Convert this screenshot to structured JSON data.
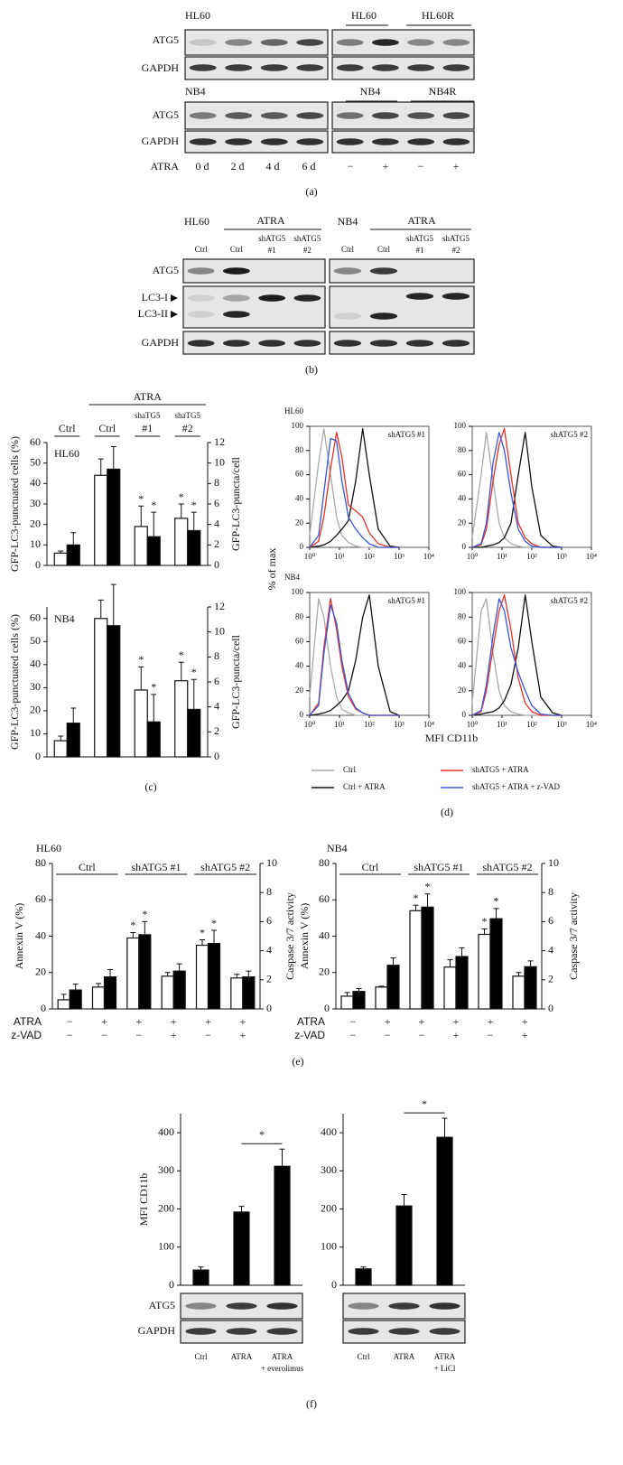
{
  "blots": {
    "a": {
      "lines": [
        "HL60",
        "NB4"
      ],
      "rows": [
        "ATG5",
        "GAPDH"
      ],
      "groups": [
        "HL60",
        "HL60R",
        "NB4",
        "NB4R"
      ],
      "treatment": "ATRA",
      "days": [
        "0 d",
        "2 d",
        "4 d",
        "6 d"
      ],
      "signs": [
        "−",
        "+",
        "−",
        "+"
      ],
      "caption": "(a)"
    },
    "b": {
      "lines": [
        "HL60",
        "NB4"
      ],
      "treatment": "ATRA",
      "lanes": [
        [
          "Ctrl"
        ],
        [
          "Ctrl"
        ],
        [
          "shATG5",
          "#1"
        ],
        [
          "shATG5",
          "#2"
        ]
      ],
      "rows": [
        "ATG5",
        "LC3-I",
        "LC3-II",
        "GAPDH"
      ],
      "caption": "(b)"
    },
    "f": {
      "rows": [
        "ATG5",
        "GAPDH"
      ],
      "caption": "(f)"
    }
  },
  "chart_data": [
    {
      "type": "bar",
      "title": "HL60",
      "ylabel": "GFP-LC3-punctuated cells (%)",
      "y2label": "GFP-LC3-puncta/cell",
      "header": {
        "treatment": "ATRA",
        "prefixes": [
          null,
          null,
          "shaTG5",
          "shaTG5"
        ]
      },
      "categories": [
        "Ctrl",
        "Ctrl",
        "#1",
        "#2"
      ],
      "ylim": [
        0,
        60
      ],
      "yticks": [
        0,
        10,
        20,
        30,
        40,
        50,
        60
      ],
      "y2lim": [
        0,
        12
      ],
      "y2ticks": [
        0,
        2,
        4,
        6,
        8,
        10,
        12
      ],
      "series": [
        {
          "color": "#ffffff",
          "values": [
            6,
            44,
            19,
            23
          ],
          "errors": [
            1,
            8,
            10,
            7
          ],
          "annotations": [
            null,
            null,
            "*",
            "*"
          ]
        },
        {
          "color": "#000000",
          "axis": "y2",
          "values": [
            2.0,
            9.4,
            2.8,
            3.4
          ],
          "errors": [
            1.2,
            2.2,
            2.4,
            1.8
          ],
          "annotations": [
            null,
            null,
            "*",
            "*"
          ]
        }
      ]
    },
    {
      "type": "bar",
      "title": "NB4",
      "ylabel": "GFP-LC3-punctuated cells (%)",
      "y2label": "GFP-LC3-puncta/cell",
      "caption": "(c)",
      "ylim": [
        0,
        65
      ],
      "yticks": [
        0,
        10,
        20,
        30,
        40,
        50,
        60
      ],
      "y2lim": [
        0,
        12
      ],
      "y2ticks": [
        0,
        2,
        4,
        6,
        8,
        10,
        12
      ],
      "series": [
        {
          "color": "#ffffff",
          "values": [
            7,
            60,
            29,
            33
          ],
          "errors": [
            2,
            8,
            10,
            8
          ],
          "annotations": [
            null,
            null,
            "*",
            "*"
          ]
        },
        {
          "color": "#000000",
          "axis": "y2",
          "values": [
            2.7,
            10.5,
            2.8,
            3.8
          ],
          "errors": [
            1.2,
            3.3,
            2.2,
            2.4
          ],
          "annotations": [
            null,
            null,
            "*",
            "*"
          ]
        }
      ]
    },
    {
      "type": "line",
      "title": "HL60",
      "ylabel": "% of max",
      "annotation": "shATG5 #1",
      "xscale": "log",
      "legend": "bottom",
      "x": [
        1,
        2,
        3,
        5,
        8,
        12,
        20,
        35,
        60,
        100,
        200,
        500,
        1000
      ],
      "xlim": [
        1,
        10000
      ],
      "xticks": [
        {
          "value": 1,
          "label": "10⁰"
        },
        {
          "value": 10,
          "label": "10¹"
        },
        {
          "value": 100,
          "label": "10²"
        },
        {
          "value": 1000,
          "label": "10³"
        },
        {
          "value": 10000,
          "label": "10⁴"
        }
      ],
      "ylim": [
        0,
        100
      ],
      "yticks": [
        0,
        20,
        40,
        60,
        80,
        100
      ],
      "series": [
        {
          "name": "Ctrl",
          "color": "#aaaaaa",
          "values": [
            10,
            70,
            98,
            60,
            25,
            10,
            4,
            1,
            0,
            0,
            0,
            0,
            0
          ]
        },
        {
          "name": "Ctrl + ATRA",
          "color": "#111111",
          "values": [
            0,
            1,
            2,
            5,
            10,
            15,
            22,
            55,
            98,
            60,
            15,
            1,
            0
          ]
        },
        {
          "name": "shATG5 + ATRA",
          "color": "#e8312a",
          "values": [
            0,
            5,
            25,
            65,
            95,
            75,
            35,
            30,
            25,
            12,
            3,
            0,
            0
          ]
        },
        {
          "name": "shATG5 + ATRA + z-VAD",
          "color": "#3b55d9",
          "values": [
            0,
            10,
            45,
            90,
            88,
            55,
            25,
            15,
            8,
            3,
            0,
            0,
            0
          ]
        }
      ]
    },
    {
      "type": "line",
      "annotation": "shATG5 #2",
      "xscale": "log",
      "x": [
        1,
        2,
        3,
        5,
        8,
        12,
        20,
        35,
        60,
        100,
        200,
        500,
        1000
      ],
      "xlim": [
        1,
        10000
      ],
      "xticks": [
        {
          "value": 1,
          "label": "10⁰"
        },
        {
          "value": 10,
          "label": "10¹"
        },
        {
          "value": 100,
          "label": "10²"
        },
        {
          "value": 1000,
          "label": "10³"
        },
        {
          "value": 10000,
          "label": "10⁴"
        }
      ],
      "ylim": [
        0,
        100
      ],
      "yticks": [
        0,
        20,
        40,
        60,
        80,
        100
      ],
      "series": [
        {
          "color": "#aaaaaa",
          "values": [
            8,
            60,
            95,
            55,
            20,
            8,
            3,
            1,
            0,
            0,
            0,
            0,
            0
          ]
        },
        {
          "color": "#111111",
          "values": [
            0,
            0,
            1,
            2,
            4,
            8,
            20,
            60,
            95,
            50,
            10,
            1,
            0
          ]
        },
        {
          "color": "#e8312a",
          "values": [
            0,
            2,
            15,
            55,
            85,
            98,
            60,
            20,
            8,
            3,
            0,
            0,
            0
          ]
        },
        {
          "color": "#3b55d9",
          "values": [
            0,
            3,
            20,
            70,
            95,
            80,
            45,
            15,
            5,
            1,
            0,
            0,
            0
          ]
        }
      ]
    },
    {
      "type": "line",
      "title": "NB4",
      "annotation": "shATG5 #1",
      "xscale": "log",
      "x": [
        1,
        2,
        3,
        5,
        8,
        12,
        20,
        35,
        60,
        100,
        200,
        500,
        1000
      ],
      "xlim": [
        1,
        10000
      ],
      "xticks": [
        {
          "value": 1,
          "label": "10⁰"
        },
        {
          "value": 10,
          "label": "10¹"
        },
        {
          "value": 100,
          "label": "10²"
        },
        {
          "value": 1000,
          "label": "10³"
        },
        {
          "value": 10000,
          "label": "10⁴"
        }
      ],
      "ylim": [
        0,
        100
      ],
      "yticks": [
        0,
        20,
        40,
        60,
        80,
        100
      ],
      "series": [
        {
          "color": "#aaaaaa",
          "values": [
            15,
            95,
            80,
            40,
            15,
            5,
            2,
            0,
            0,
            0,
            0,
            0,
            0
          ]
        },
        {
          "color": "#111111",
          "values": [
            0,
            1,
            2,
            4,
            8,
            12,
            20,
            45,
            80,
            98,
            40,
            3,
            0
          ]
        },
        {
          "color": "#e8312a",
          "values": [
            0,
            10,
            55,
            95,
            70,
            40,
            15,
            5,
            2,
            0,
            0,
            0,
            0
          ]
        },
        {
          "color": "#3b55d9",
          "values": [
            0,
            8,
            50,
            90,
            75,
            45,
            18,
            6,
            2,
            0,
            0,
            0,
            0
          ]
        }
      ]
    },
    {
      "type": "line",
      "annotation": "shATG5 #2",
      "xlabel": "MFI CD11b",
      "caption": "(d)",
      "xscale": "log",
      "x": [
        1,
        2,
        3,
        5,
        8,
        12,
        20,
        35,
        60,
        100,
        200,
        500,
        1000
      ],
      "xlim": [
        1,
        10000
      ],
      "xticks": [
        {
          "value": 1,
          "label": "10⁰"
        },
        {
          "value": 10,
          "label": "10¹"
        },
        {
          "value": 100,
          "label": "10²"
        },
        {
          "value": 1000,
          "label": "10³"
        },
        {
          "value": 10000,
          "label": "10⁴"
        }
      ],
      "ylim": [
        0,
        100
      ],
      "yticks": [
        0,
        20,
        40,
        60,
        80,
        100
      ],
      "series": [
        {
          "color": "#aaaaaa",
          "values": [
            10,
            85,
            95,
            50,
            20,
            8,
            3,
            1,
            0,
            0,
            0,
            0,
            0
          ]
        },
        {
          "color": "#111111",
          "values": [
            0,
            1,
            2,
            3,
            6,
            12,
            25,
            55,
            98,
            60,
            15,
            2,
            0
          ]
        },
        {
          "color": "#e8312a",
          "values": [
            0,
            3,
            20,
            55,
            85,
            98,
            70,
            30,
            10,
            3,
            0,
            0,
            0
          ]
        },
        {
          "color": "#3b55d9",
          "values": [
            0,
            4,
            25,
            65,
            95,
            85,
            55,
            35,
            20,
            8,
            1,
            0,
            0
          ]
        }
      ]
    },
    {
      "type": "bar",
      "title": "HL60",
      "ylabel": "Annexin V (%)",
      "y2label": "Caspase 3/7 activity",
      "groups": [
        "Ctrl",
        "shATG5 #1",
        "shATG5 #2"
      ],
      "conditions": [
        {
          "label": "ATRA",
          "values": [
            "−",
            "+",
            "+",
            "+",
            "+",
            "+"
          ]
        },
        {
          "label": "z-VAD",
          "values": [
            "−",
            "−",
            "−",
            "+",
            "−",
            "+"
          ]
        }
      ],
      "ylim": [
        0,
        80
      ],
      "yticks": [
        0,
        20,
        40,
        60,
        80
      ],
      "y2lim": [
        0,
        10
      ],
      "y2ticks": [
        0,
        2,
        4,
        6,
        8,
        10
      ],
      "series": [
        {
          "color": "#ffffff",
          "values": [
            5,
            12,
            39,
            18,
            35,
            17
          ],
          "errors": [
            3,
            2,
            3,
            2,
            3,
            2
          ],
          "annotations": [
            null,
            null,
            "*",
            null,
            "*",
            null
          ]
        },
        {
          "color": "#000000",
          "axis": "y2",
          "values": [
            1.3,
            2.2,
            5.1,
            2.6,
            4.5,
            2.2
          ],
          "errors": [
            0.4,
            0.5,
            0.9,
            0.5,
            0.9,
            0.4
          ],
          "annotations": [
            null,
            null,
            "*",
            null,
            "*",
            null
          ]
        }
      ]
    },
    {
      "type": "bar",
      "title": "NB4",
      "ylabel": "Annexin V (%)",
      "y2label": "Caspase 3/7 activity",
      "caption": "(e)",
      "groups": [
        "Ctrl",
        "shATG5 #1",
        "shATG5 #2"
      ],
      "conditions": [
        {
          "label": "ATRA",
          "values": [
            "−",
            "+",
            "+",
            "+",
            "+",
            "+"
          ]
        },
        {
          "label": "z-VAD",
          "values": [
            "−",
            "−",
            "−",
            "+",
            "−",
            "+"
          ]
        }
      ],
      "ylim": [
        0,
        80
      ],
      "yticks": [
        0,
        20,
        40,
        60,
        80
      ],
      "y2lim": [
        0,
        10
      ],
      "y2ticks": [
        0,
        2,
        4,
        6,
        8,
        10
      ],
      "series": [
        {
          "color": "#ffffff",
          "values": [
            7,
            12,
            54,
            23,
            41,
            18
          ],
          "errors": [
            2,
            0.5,
            3,
            4,
            3,
            2
          ],
          "annotations": [
            null,
            null,
            "*",
            null,
            "*",
            null
          ]
        },
        {
          "color": "#000000",
          "axis": "y2",
          "values": [
            1.2,
            3.0,
            7.0,
            3.6,
            6.2,
            2.9
          ],
          "errors": [
            0.2,
            0.5,
            0.9,
            0.6,
            0.7,
            0.4
          ],
          "annotations": [
            null,
            null,
            "*",
            null,
            "*",
            null
          ]
        }
      ]
    },
    {
      "type": "bar",
      "ylabel": "MFI CD11b",
      "categories": [
        [
          "Ctrl"
        ],
        [
          "ATRA"
        ],
        [
          "ATRA",
          "+ everolimus"
        ]
      ],
      "values": [
        40,
        192,
        312
      ],
      "errors": [
        8,
        15,
        45
      ],
      "color": "#000000",
      "ylim": [
        0,
        450
      ],
      "yticks": [
        0,
        100,
        200,
        300,
        400
      ],
      "significance": {
        "label": "*",
        "between": [
          1,
          2
        ]
      }
    },
    {
      "type": "bar",
      "categories": [
        [
          "Ctrl"
        ],
        [
          "ATRA"
        ],
        [
          "ATRA",
          "+ LiCl"
        ]
      ],
      "values": [
        43,
        208,
        388
      ],
      "errors": [
        5,
        30,
        50
      ],
      "color": "#000000",
      "ylim": [
        0,
        450
      ],
      "yticks": [
        0,
        100,
        200,
        300,
        400
      ],
      "significance": {
        "label": "*",
        "between": [
          1,
          2
        ]
      }
    }
  ]
}
